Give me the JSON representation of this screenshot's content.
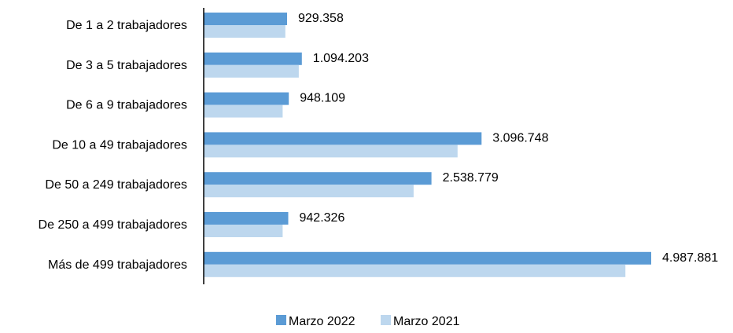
{
  "chart_data": {
    "type": "bar",
    "orientation": "horizontal",
    "categories": [
      "De 1 a 2 trabajadores",
      "De 3 a 5 trabajadores",
      "De 6 a 9 trabajadores",
      "De 10 a 49 trabajadores",
      "De  50 a 249 trabajadores",
      "De 250 a 499 trabajadores",
      "Más de 499 trabajadores"
    ],
    "series": [
      {
        "name": "Marzo 2022",
        "color": "#5B9BD5",
        "values": [
          929358,
          1094203,
          948109,
          3096748,
          2538779,
          942326,
          4987881
        ],
        "value_labels": [
          "929.358",
          "1.094.203",
          "948.109",
          "3.096.748",
          "2.538.779",
          "942.326",
          "4.987.881"
        ]
      },
      {
        "name": "Marzo 2021",
        "color": "#BDD7EE",
        "values": [
          910000,
          1060000,
          880000,
          2830000,
          2340000,
          880000,
          4700000
        ]
      }
    ],
    "xlim": [
      0,
      5000000
    ],
    "grid": false,
    "legend_position": "bottom"
  }
}
